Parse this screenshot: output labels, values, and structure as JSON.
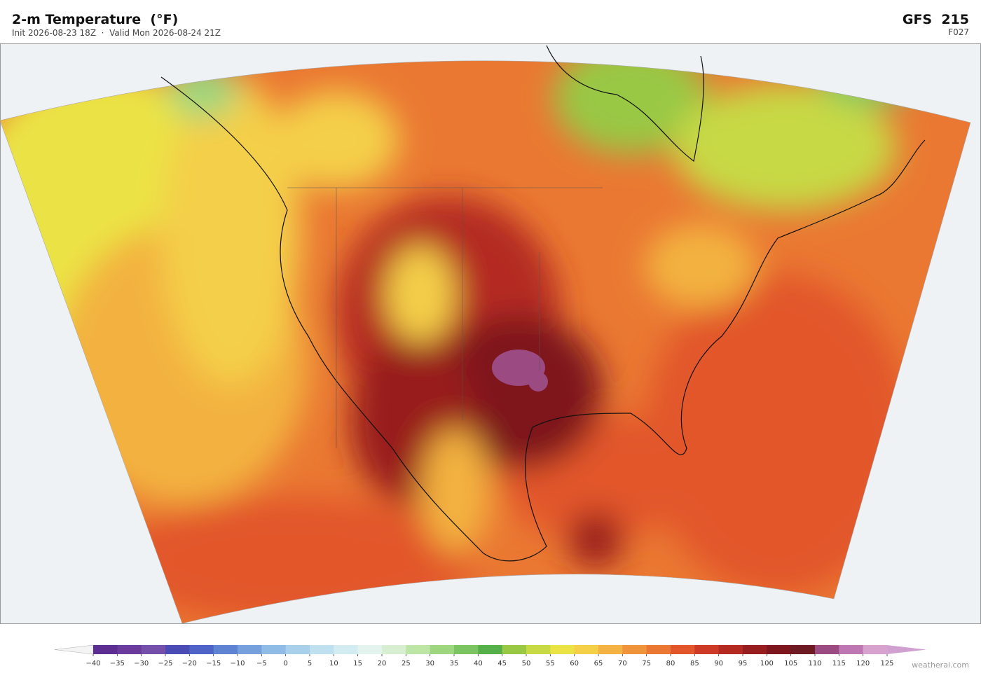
{
  "header": {
    "title": "2-m Temperature  (°F)",
    "subtitle": "Init 2026-08-23 18Z  ·  Valid Mon 2026-08-24 21Z",
    "model": "GFS  215",
    "forecast": "F027"
  },
  "colorbar": {
    "lim": [
      -40,
      125
    ],
    "ticks": [
      {
        "value": -40,
        "label": "−40"
      },
      {
        "value": -35,
        "label": "−35"
      },
      {
        "value": -30,
        "label": "−30"
      },
      {
        "value": -25,
        "label": "−25"
      },
      {
        "value": -20,
        "label": "−20"
      },
      {
        "value": -15,
        "label": "−15"
      },
      {
        "value": -10,
        "label": "−10"
      },
      {
        "value": -5,
        "label": "−5"
      },
      0,
      5,
      10,
      15,
      20,
      25,
      30,
      35,
      40,
      45,
      50,
      55,
      60,
      65,
      70,
      75,
      80,
      85,
      90,
      95,
      100,
      105,
      110,
      115,
      120,
      125
    ],
    "colors": [
      "#5c2e91",
      "#6a3a9c",
      "#7550aa",
      "#4a4bb5",
      "#4e63c8",
      "#5f82d3",
      "#769fdc",
      "#8fbbe4",
      "#a8d0ea",
      "#bfe0ef",
      "#d3ecf2",
      "#e3f4ee",
      "#d7efd0",
      "#bde5a5",
      "#9dd67f",
      "#7cc462",
      "#55b04a",
      "#99c845",
      "#c7d944",
      "#ebe345",
      "#f4cf48",
      "#f3b241",
      "#ef943a",
      "#ea7832",
      "#e2562b",
      "#cd3a26",
      "#b42a22",
      "#981d1e",
      "#7e161d",
      "#6e1a22",
      "#9b4a82",
      "#bf77b3",
      "#d7a3ce"
    ],
    "under_color": "#f4f4f4",
    "over_color": "#cfa0d0"
  },
  "credit": "weatherai.com"
}
